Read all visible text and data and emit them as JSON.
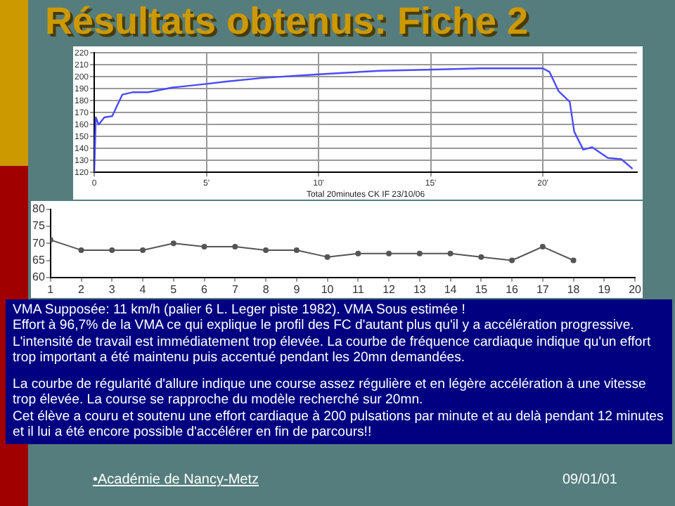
{
  "chart_data": [
    {
      "type": "line",
      "title": "Résultats obtenus: Fiche 2",
      "xlabel": "Total 20minutes CK IF 23/10/06",
      "x": [
        0,
        0.07,
        0.2,
        0.45,
        0.8,
        1.25,
        1.7,
        2.4,
        3.5,
        5,
        5.9,
        7.5,
        10,
        12.7,
        15.1,
        17.2,
        20,
        20.3,
        20.7,
        21.2,
        21.4,
        21.8,
        22.2,
        22.9,
        23.5,
        24
      ],
      "series": [
        {
          "color": "#4b4bff",
          "values": [
            120,
            166,
            160,
            166,
            167,
            185,
            187,
            187,
            191,
            194,
            196,
            199,
            202,
            205,
            206,
            207,
            207,
            204,
            188,
            179,
            154,
            139,
            141,
            132,
            131,
            123
          ]
        }
      ],
      "xlim": [
        0,
        24.2
      ],
      "xticks": [
        0,
        {
          "value": 5,
          "label": "5'"
        },
        {
          "value": 10,
          "label": "10'"
        },
        {
          "value": 15,
          "label": "15'"
        },
        {
          "value": 20,
          "label": "20'"
        }
      ],
      "ylim": [
        120,
        220
      ],
      "yticks": [
        120,
        130,
        140,
        150,
        160,
        170,
        180,
        190,
        200,
        210,
        220
      ],
      "grid": true,
      "marker": "none"
    },
    {
      "type": "line",
      "x": [
        1,
        2,
        3,
        4,
        5,
        6,
        7,
        8,
        9,
        10,
        11,
        12,
        13,
        14,
        15,
        16,
        17,
        18
      ],
      "series": [
        {
          "color": "#555555",
          "values": [
            71,
            68,
            68,
            68,
            70,
            69,
            69,
            68,
            68,
            66,
            67,
            67,
            67,
            67,
            66,
            65,
            69,
            65
          ]
        }
      ],
      "xlim": [
        1,
        20
      ],
      "xticks": [
        1,
        2,
        3,
        4,
        5,
        6,
        7,
        8,
        9,
        10,
        11,
        12,
        13,
        14,
        15,
        16,
        17,
        18,
        19,
        20
      ],
      "ylim": [
        60,
        80
      ],
      "yticks": [
        60,
        65,
        70,
        75,
        80
      ],
      "grid": false,
      "marker": "circle"
    },
    {
      "type": "other",
      "annotations": [
        "VMA Supposée: 11 km/h (palier 6 L. Leger piste 1982). VMA Sous estimée !",
        "Effort à 96,7% de la VMA ce qui explique le profil des FC d'autant plus qu'il y a accélération progressive.",
        "L'intensité de travail est immédiatement trop élevée. La courbe de fréquence cardiaque indique qu'un effort trop important a été maintenu puis accentué pendant les 20mn demandées.",
        "La courbe de régularité d'allure indique une course assez régulière et en légère accélération à une vitesse trop élevée. La course se rapproche du modèle recherché sur 20mn.",
        "Cet élève a couru et soutenu une effort cardiaque à 200 pulsations par minute et au delà pendant 12 minutes et il lui a été encore possible d'accélérer en fin de parcours!!"
      ]
    },
    {
      "type": "other",
      "annotations": [
        "•Académie de Nancy-Metz",
        "09/01/01"
      ]
    }
  ]
}
